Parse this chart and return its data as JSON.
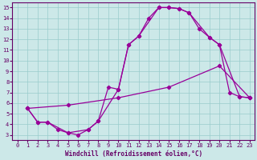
{
  "xlabel": "Windchill (Refroidissement éolien,°C)",
  "bg_color": "#cce8e8",
  "line_color": "#990099",
  "xlim": [
    -0.5,
    23.5
  ],
  "ylim": [
    2.5,
    15.5
  ],
  "line1_x": [
    1,
    2,
    3,
    4,
    5,
    6,
    7,
    8,
    9,
    10,
    11,
    12,
    13,
    14,
    15,
    16,
    17,
    18,
    19,
    20,
    21,
    22,
    23
  ],
  "line1_y": [
    5.5,
    4.2,
    4.2,
    3.5,
    3.2,
    3.0,
    3.5,
    4.3,
    7.5,
    7.3,
    11.5,
    12.3,
    14.0,
    15.0,
    15.0,
    14.9,
    14.5,
    13.0,
    12.2,
    11.5,
    7.0,
    6.6,
    6.5
  ],
  "line2_x": [
    1,
    2,
    3,
    5,
    7,
    8,
    10,
    11,
    12,
    14,
    15,
    16,
    17,
    19,
    20,
    22,
    23
  ],
  "line2_y": [
    5.5,
    4.2,
    4.2,
    3.2,
    3.5,
    4.3,
    7.3,
    11.5,
    12.3,
    15.0,
    15.0,
    14.9,
    14.5,
    12.2,
    11.5,
    6.6,
    6.5
  ],
  "line3_x": [
    1,
    5,
    10,
    15,
    20,
    23
  ],
  "line3_y": [
    5.5,
    5.8,
    6.5,
    7.5,
    9.5,
    6.5
  ],
  "xticks": [
    0,
    1,
    2,
    3,
    4,
    5,
    6,
    7,
    8,
    9,
    10,
    11,
    12,
    13,
    14,
    15,
    16,
    17,
    18,
    19,
    20,
    21,
    22,
    23
  ],
  "yticks": [
    3,
    4,
    5,
    6,
    7,
    8,
    9,
    10,
    11,
    12,
    13,
    14,
    15
  ],
  "tick_fontsize": 5.0,
  "label_fontsize": 5.5,
  "grid_color": "#99cccc",
  "spine_color": "#660066",
  "tick_color": "#660066"
}
